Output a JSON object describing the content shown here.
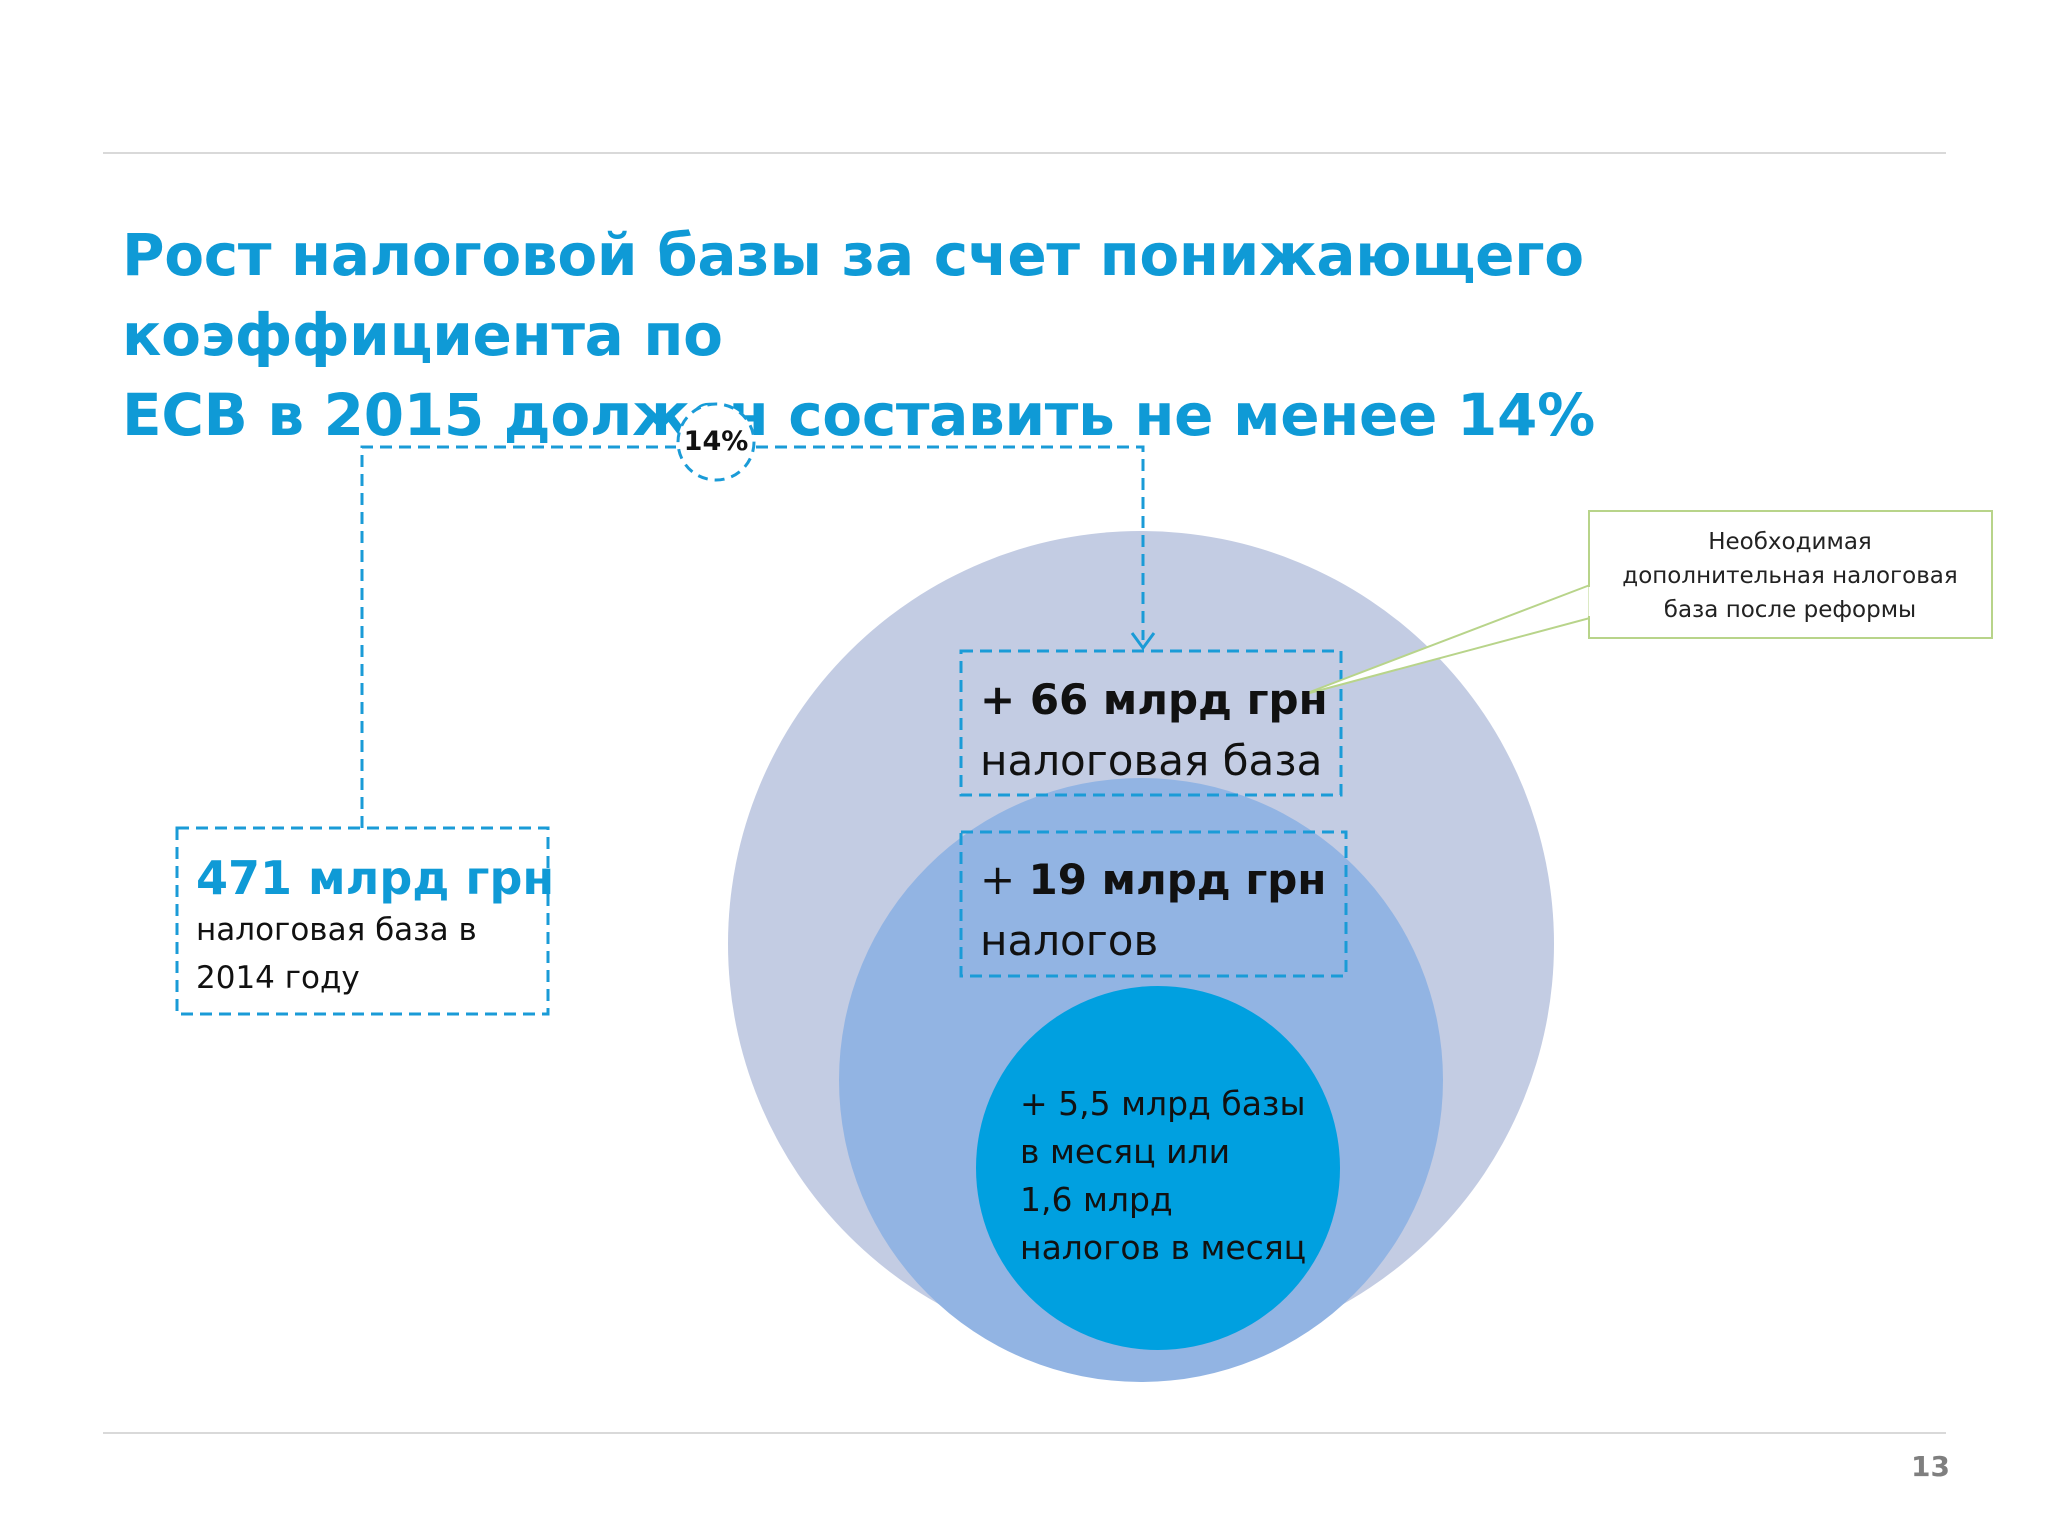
{
  "slide": {
    "title_line1": "Рост налоговой базы за счет понижающего коэффициента по",
    "title_line2": "ЕСВ в 2015 должен составить не менее 14%",
    "page_number": "13"
  },
  "growth_badge": {
    "label": "14%"
  },
  "base_2014": {
    "amount": "471 млрд грн",
    "caption_line1": "налоговая база в",
    "caption_line2": "2014 году"
  },
  "additional_base": {
    "amount": "+ 66 млрд грн",
    "caption": "налоговая база"
  },
  "additional_taxes": {
    "plus": "+ ",
    "amount": "19 млрд грн",
    "caption": "налогов"
  },
  "monthly": {
    "line1": "+ 5,5 млрд базы",
    "line2": "в месяц или",
    "line3": "1,6 млрд",
    "line4": "налогов в месяц"
  },
  "callout": {
    "line1": "Необходимая",
    "line2": "дополнительная налоговая",
    "line3": "база после реформы"
  },
  "colors": {
    "title": "#0f9ad6",
    "dashed": "#1a9bd7",
    "outer_circle": "#c3cce3",
    "middle_circle": "#92b4e3",
    "inner_circle": "#00a0e0",
    "callout_border": "#b8d48a"
  }
}
